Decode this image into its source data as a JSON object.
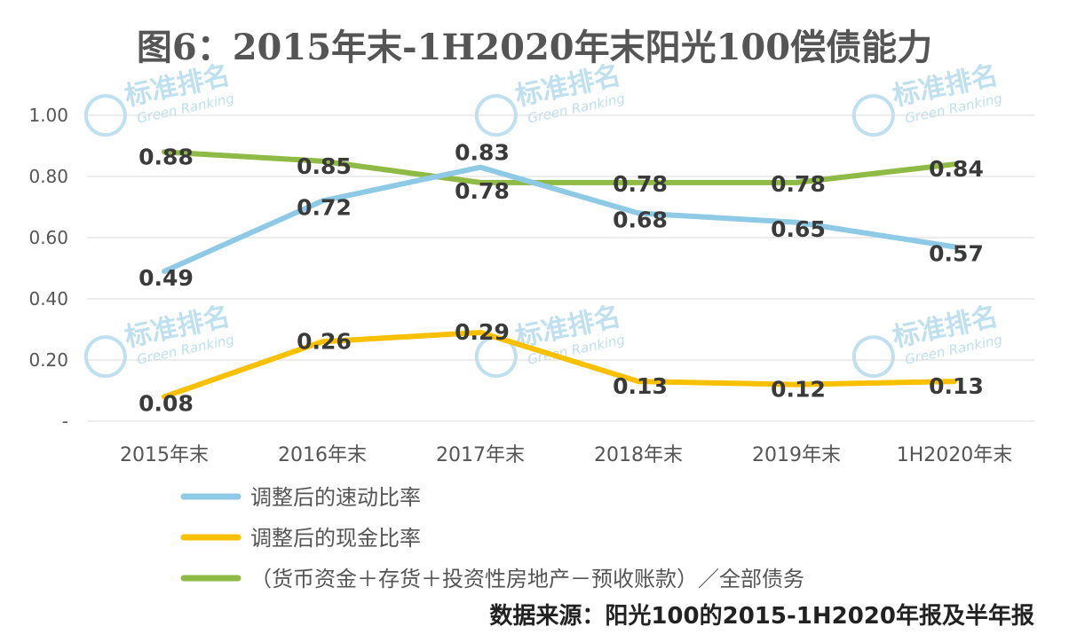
{
  "chart_data": {
    "type": "line",
    "title": "图6：2015年末-1H2020年末阳光100偿债能力",
    "categories": [
      "2015年末",
      "2016年末",
      "2017年末",
      "2018年末",
      "2019年末",
      "1H2020年末"
    ],
    "y_ticks": [
      "1.00",
      "0.80",
      "0.60",
      "0.40",
      "0.20",
      "-"
    ],
    "ylim": [
      0,
      1.0
    ],
    "grid": true,
    "legend_position": "bottom",
    "series": [
      {
        "name": "调整后的速动比率",
        "color": "#8ecae6",
        "values": [
          0.49,
          0.72,
          0.83,
          0.68,
          0.65,
          0.57
        ],
        "labels": [
          "0.49",
          "0.72",
          "0.83",
          "0.68",
          "0.65",
          "0.57"
        ]
      },
      {
        "name": "调整后的现金比率",
        "color": "#f9c000",
        "values": [
          0.08,
          0.26,
          0.29,
          0.13,
          0.12,
          0.13
        ],
        "labels": [
          "0.08",
          "0.26",
          "0.29",
          "0.13",
          "0.12",
          "0.13"
        ]
      },
      {
        "name": "（货币资金＋存货＋投资性房地产－预收账款）／全部债务",
        "color": "#8fba45",
        "values": [
          0.88,
          0.85,
          0.78,
          0.78,
          0.78,
          0.84
        ],
        "labels": [
          "0.88",
          "0.85",
          "0.78",
          "0.78",
          "0.78",
          "0.84"
        ]
      }
    ]
  },
  "watermark": {
    "text": "标准排名",
    "subtext": "Green Ranking"
  },
  "source_note": "数据来源：阳光100的2015-1H2020年报及半年报"
}
